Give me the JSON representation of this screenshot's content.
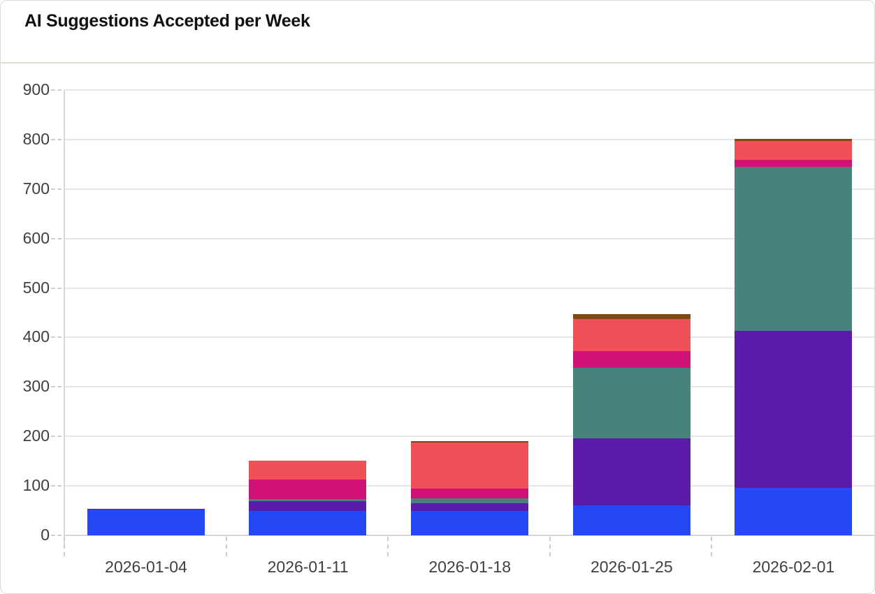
{
  "card": {
    "title": "AI Suggestions Accepted per Week"
  },
  "chart_data": {
    "type": "bar",
    "stacked": true,
    "title": "AI Suggestions Accepted per Week",
    "xlabel": "",
    "ylabel": "",
    "categories": [
      "2026-01-04",
      "2026-01-11",
      "2026-01-18",
      "2026-01-25",
      "2026-02-01"
    ],
    "series": [
      {
        "name": "blue-series",
        "color": "#2448f5",
        "values": [
          52,
          50,
          49,
          61,
          96
        ]
      },
      {
        "name": "purple-series",
        "color": "#5a1ca8",
        "values": [
          1,
          19,
          16,
          135,
          318
        ]
      },
      {
        "name": "teal-series",
        "color": "#47837b",
        "values": [
          0,
          5,
          10,
          142,
          331
        ]
      },
      {
        "name": "magenta-series",
        "color": "#d01178",
        "values": [
          0,
          39,
          20,
          35,
          14
        ]
      },
      {
        "name": "red-series",
        "color": "#ef4f56",
        "values": [
          0,
          38,
          92,
          64,
          38
        ]
      },
      {
        "name": "brown-series",
        "color": "#7d4a12",
        "values": [
          0,
          0,
          3,
          10,
          4
        ]
      }
    ],
    "stack_totals": [
      53,
      151,
      190,
      447,
      801
    ],
    "ylim": [
      0,
      900
    ],
    "yticks": [
      0,
      100,
      200,
      300,
      400,
      500,
      600,
      700,
      800,
      900
    ],
    "grid": true,
    "legend": false
  },
  "colors": {
    "grid": "#e6e5ec",
    "baseline": "#d5d4db",
    "axis_line": "#d8d7de",
    "tick_label": "#3f3f3f",
    "title": "#111111",
    "header_divider": "#dfddd2",
    "card_border": "#d9d9d9",
    "background": "#ffffff"
  }
}
